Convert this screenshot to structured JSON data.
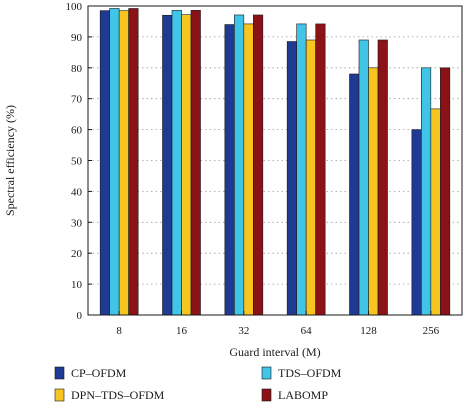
{
  "chart_data": {
    "type": "bar",
    "title": "",
    "xlabel": "Guard interval (M)",
    "ylabel": "Spectral efficiency (%)",
    "categories": [
      "8",
      "16",
      "32",
      "64",
      "128",
      "256"
    ],
    "ylim": [
      0,
      100
    ],
    "yticks": [
      "0",
      "10",
      "20",
      "30",
      "40",
      "50",
      "60",
      "70",
      "80",
      "90",
      "100"
    ],
    "grid": "horizontal dotted",
    "legend_position": "bottom",
    "series": [
      {
        "name": "CP–OFDM",
        "color": "#1f3a93",
        "values": [
          98.5,
          97,
          94,
          88.5,
          78,
          60
        ]
      },
      {
        "name": "TDS–OFDM",
        "color": "#40c4e8",
        "values": [
          99.2,
          98.6,
          97.1,
          94.2,
          89,
          80
        ]
      },
      {
        "name": "DPN–TDS–OFDM",
        "color": "#f7c520",
        "values": [
          98.5,
          97.2,
          94.2,
          89,
          80,
          66.7
        ]
      },
      {
        "name": "LABOMP",
        "color": "#8b1216",
        "values": [
          99.2,
          98.6,
          97.1,
          94.2,
          89,
          80
        ]
      }
    ]
  }
}
